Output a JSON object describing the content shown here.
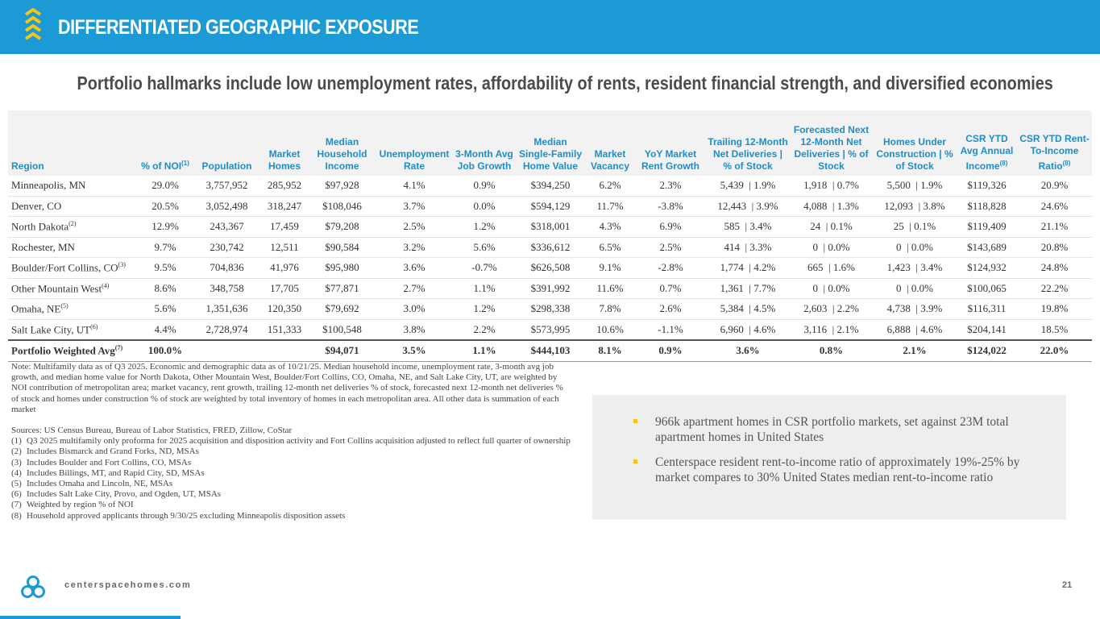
{
  "header": {
    "title": "DIFFERENTIATED GEOGRAPHIC EXPOSURE"
  },
  "subtitle": "Portfolio hallmarks include low unemployment rates, affordability of rents, resident financial strength, and diversified economies",
  "table": {
    "columns": [
      {
        "label": "Region",
        "note": null
      },
      {
        "label": "% of NOI",
        "note": "(1)"
      },
      {
        "label": "Population",
        "note": null
      },
      {
        "label": "Market Homes",
        "note": null
      },
      {
        "label": "Median Household Income",
        "note": null
      },
      {
        "label": "Unemployment Rate",
        "note": null
      },
      {
        "label": "3-Month Avg Job Growth",
        "note": null
      },
      {
        "label": "Median Single-Family Home Value",
        "note": null
      },
      {
        "label": "Market Vacancy",
        "note": null
      },
      {
        "label": "YoY Market Rent Growth",
        "note": null
      },
      {
        "label": "Trailing 12-Month Net Deliveries | % of Stock",
        "note": null
      },
      {
        "label": "Forecasted Next 12-Month Net Deliveries | % of Stock",
        "note": null
      },
      {
        "label": "Homes Under Construction | % of Stock",
        "note": null
      },
      {
        "label": "CSR YTD Avg Annual Income",
        "note": "(8)"
      },
      {
        "label": "CSR YTD Rent-To-Income Ratio",
        "note": "(8)"
      }
    ],
    "rows": [
      {
        "region": "Minneapolis, MN",
        "note": null,
        "cells": [
          "29.0%",
          "3,757,952",
          "285,952",
          "$97,928",
          "4.1%",
          "0.9%",
          "$394,250",
          "6.2%",
          "2.3%",
          "5,439  | 1.9%",
          "1,918  | 0.7%",
          "5,500  | 1.9%",
          "$119,326",
          "20.9%"
        ]
      },
      {
        "region": "Denver, CO",
        "note": null,
        "cells": [
          "20.5%",
          "3,052,498",
          "318,247",
          "$108,046",
          "3.7%",
          "0.0%",
          "$594,129",
          "11.7%",
          "-3.8%",
          "12,443  | 3.9%",
          "4,088  | 1.3%",
          "12,093  | 3.8%",
          "$118,828",
          "24.6%"
        ]
      },
      {
        "region": "North Dakota",
        "note": "(2)",
        "cells": [
          "12.9%",
          "243,367",
          "17,459",
          "$79,208",
          "2.5%",
          "1.2%",
          "$318,001",
          "4.3%",
          "6.9%",
          "585  | 3.4%",
          "24  | 0.1%",
          "25  | 0.1%",
          "$119,409",
          "21.1%"
        ]
      },
      {
        "region": "Rochester, MN",
        "note": null,
        "cells": [
          "9.7%",
          "230,742",
          "12,511",
          "$90,584",
          "3.2%",
          "5.6%",
          "$336,612",
          "6.5%",
          "2.5%",
          "414  | 3.3%",
          "0  | 0.0%",
          "0  | 0.0%",
          "$143,689",
          "20.8%"
        ]
      },
      {
        "region": "Boulder/Fort Collins, CO",
        "note": "(3)",
        "cells": [
          "9.5%",
          "704,836",
          "41,976",
          "$95,980",
          "3.6%",
          "-0.7%",
          "$626,508",
          "9.1%",
          "-2.8%",
          "1,774  | 4.2%",
          "665  | 1.6%",
          "1,423  | 3.4%",
          "$124,932",
          "24.8%"
        ]
      },
      {
        "region": "Other Mountain West",
        "note": "(4)",
        "cells": [
          "8.6%",
          "348,758",
          "17,705",
          "$77,871",
          "2.7%",
          "1.1%",
          "$391,992",
          "11.6%",
          "0.7%",
          "1,361  | 7.7%",
          "0  | 0.0%",
          "0  | 0.0%",
          "$100,065",
          "22.2%"
        ]
      },
      {
        "region": "Omaha, NE",
        "note": "(5)",
        "cells": [
          "5.6%",
          "1,351,636",
          "120,350",
          "$79,692",
          "3.0%",
          "1.2%",
          "$298,338",
          "7.8%",
          "2.6%",
          "5,384  | 4.5%",
          "2,603  | 2.2%",
          "4,738  | 3.9%",
          "$116,311",
          "19.8%"
        ]
      },
      {
        "region": "Salt Lake City, UT",
        "note": "(6)",
        "cells": [
          "4.4%",
          "2,728,974",
          "151,333",
          "$100,548",
          "3.8%",
          "2.2%",
          "$573,995",
          "10.6%",
          "-1.1%",
          "6,960  | 4.6%",
          "3,116  | 2.1%",
          "6,888  | 4.6%",
          "$204,141",
          "18.5%"
        ]
      }
    ],
    "total": {
      "region": "Portfolio Weighted Avg",
      "note": "(7)",
      "cells": [
        "100.0%",
        null,
        null,
        "$94,071",
        "3.5%",
        "1.1%",
        "$444,103",
        "8.1%",
        "0.9%",
        "3.6%",
        "0.8%",
        "2.1%",
        "$124,022",
        "22.0%"
      ]
    }
  },
  "notes": {
    "note": "Note: Multifamily data as of Q3 2025. Economic and demographic data as of 10/21/25. Median household income, unemployment rate, 3-month avg job growth, and median home value for North Dakota, Other Mountain West, Boulder/Fort Collins, CO, Omaha, NE, and Salt Lake City, UT, are weighted by NOI contribution of metropolitan area; market vacancy, rent growth, trailing 12-month net deliveries % of stock, forecasted next 12-month net deliveries % of stock and homes under construction % of stock are weighted by total inventory of homes in each metropolitan area. All other data is summation of each market",
    "sources": "Sources: US Census Bureau, Bureau of Labor Statistics, FRED, Zillow, CoStar",
    "footnotes": [
      {
        "marker": "(1)",
        "text": "Q3 2025 multifamily only proforma for 2025 acquisition and disposition activity and Fort Collins acquisition adjusted to reflect full quarter of ownership"
      },
      {
        "marker": "(2)",
        "text": "Includes Bismarck and Grand Forks, ND, MSAs"
      },
      {
        "marker": "(3)",
        "text": "Includes Boulder and Fort Collins, CO, MSAs"
      },
      {
        "marker": "(4)",
        "text": "Includes Billings, MT, and Rapid City, SD, MSAs"
      },
      {
        "marker": "(5)",
        "text": "Includes Omaha and Lincoln, NE, MSAs"
      },
      {
        "marker": "(6)",
        "text": "Includes Salt Lake City, Provo, and Ogden, UT, MSAs"
      },
      {
        "marker": "(7)",
        "text": "Weighted by region % of NOI"
      },
      {
        "marker": "(8)",
        "text": "Household approved applicants through 9/30/25 excluding Minneapolis disposition assets"
      }
    ]
  },
  "callout": {
    "bullets": [
      "966k apartment homes in CSR portfolio markets, set against 23M total apartment homes in United States",
      "Centerspace resident rent-to-income ratio of approximately 19%-25% by market compares to 30% United States median rent-to-income ratio"
    ]
  },
  "footer": {
    "website": "centerspacehomes.com",
    "page": "21"
  }
}
